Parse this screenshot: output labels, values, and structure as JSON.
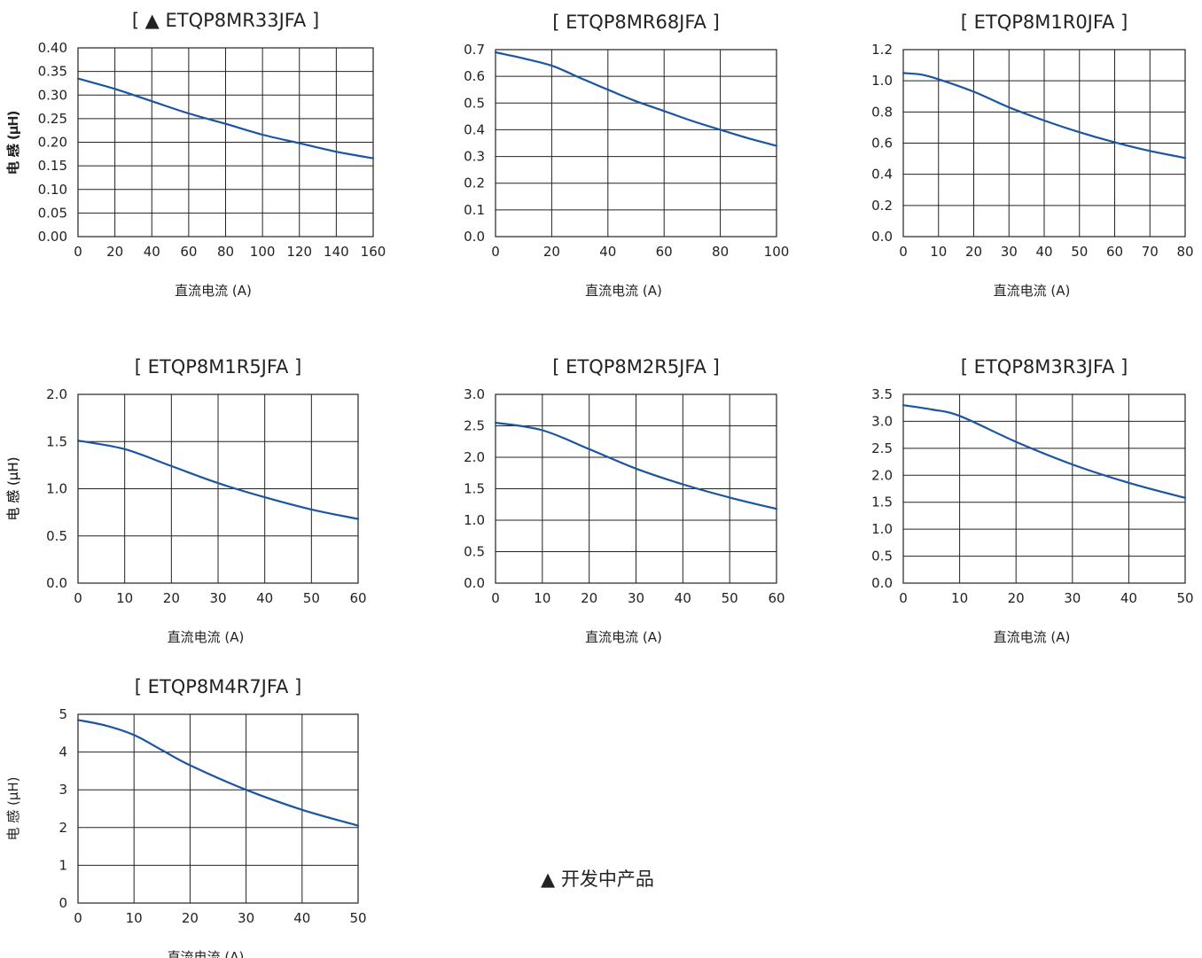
{
  "colors": {
    "line": "#1a56a0",
    "grid": "#222222",
    "text": "#222222"
  },
  "note": "▲ 开发中产品",
  "chart_data": [
    {
      "type": "line",
      "title": "[ ▲ ETQP8MR33JFA ]",
      "xlabel": "直流电流 (A)",
      "ylabel": "电 感 (μH)",
      "xlim": [
        0,
        160
      ],
      "ylim": [
        0,
        0.4
      ],
      "xticks": [
        0,
        20,
        40,
        60,
        80,
        100,
        120,
        140,
        160
      ],
      "xtick_labels": [
        "0",
        "20",
        "40",
        "60",
        "80",
        "100",
        "120",
        "140",
        "160"
      ],
      "yticks": [
        0,
        0.05,
        0.1,
        0.15,
        0.2,
        0.25,
        0.3,
        0.35,
        0.4
      ],
      "ytick_labels": [
        "0.00",
        "0.05",
        "0.10",
        "0.15",
        "0.20",
        "0.25",
        "0.30",
        "0.35",
        "0.40"
      ],
      "grid": true,
      "x": [
        0,
        20,
        40,
        60,
        80,
        100,
        120,
        140,
        160
      ],
      "y": [
        0.335,
        0.313,
        0.287,
        0.261,
        0.239,
        0.216,
        0.198,
        0.18,
        0.166
      ]
    },
    {
      "type": "line",
      "title": "[ ETQP8MR68JFA ]",
      "xlabel": "直流电流 (A)",
      "ylabel": "电 感 (μH)",
      "xlim": [
        0,
        100
      ],
      "ylim": [
        0,
        0.7
      ],
      "xticks": [
        0,
        20,
        40,
        60,
        80,
        100
      ],
      "xtick_labels": [
        "0",
        "20",
        "40",
        "60",
        "80",
        "100"
      ],
      "yticks": [
        0,
        0.1,
        0.2,
        0.3,
        0.4,
        0.5,
        0.6,
        0.7
      ],
      "ytick_labels": [
        "0.0",
        "0.1",
        "0.2",
        "0.3",
        "0.4",
        "0.5",
        "0.6",
        "0.7"
      ],
      "grid": true,
      "x": [
        0,
        10,
        20,
        30,
        40,
        50,
        60,
        70,
        80,
        90,
        100
      ],
      "y": [
        0.69,
        0.667,
        0.64,
        0.595,
        0.55,
        0.507,
        0.47,
        0.433,
        0.4,
        0.368,
        0.34
      ]
    },
    {
      "type": "line",
      "title": "[ ETQP8M1R0JFA ]",
      "xlabel": "直流电流 (A)",
      "ylabel": "电 感 (μH)",
      "xlim": [
        0,
        80
      ],
      "ylim": [
        0,
        1.2
      ],
      "xticks": [
        0,
        10,
        20,
        30,
        40,
        50,
        60,
        70,
        80
      ],
      "xtick_labels": [
        "0",
        "10",
        "20",
        "30",
        "40",
        "50",
        "60",
        "70",
        "80"
      ],
      "yticks": [
        0,
        0.2,
        0.4,
        0.6,
        0.8,
        1.0,
        1.2
      ],
      "ytick_labels": [
        "0.0",
        "0.2",
        "0.4",
        "0.6",
        "0.8",
        "1.0",
        "1.2"
      ],
      "grid": true,
      "x": [
        0,
        5,
        10,
        20,
        30,
        40,
        50,
        60,
        70,
        80
      ],
      "y": [
        1.05,
        1.04,
        1.01,
        0.93,
        0.83,
        0.745,
        0.67,
        0.605,
        0.55,
        0.505
      ]
    },
    {
      "type": "line",
      "title": "[ ETQP8M1R5JFA ]",
      "xlabel": "直流电流 (A)",
      "ylabel": "电 感 (μH)",
      "xlim": [
        0,
        60
      ],
      "ylim": [
        0,
        2.0
      ],
      "xticks": [
        0,
        10,
        20,
        30,
        40,
        50,
        60
      ],
      "xtick_labels": [
        "0",
        "10",
        "20",
        "30",
        "40",
        "50",
        "60"
      ],
      "yticks": [
        0,
        0.5,
        1.0,
        1.5,
        2.0
      ],
      "ytick_labels": [
        "0.0",
        "0.5",
        "1.0",
        "1.5",
        "2.0"
      ],
      "grid": true,
      "x": [
        0,
        10,
        20,
        30,
        40,
        50,
        60
      ],
      "y": [
        1.51,
        1.42,
        1.24,
        1.06,
        0.91,
        0.78,
        0.68
      ]
    },
    {
      "type": "line",
      "title": "[ ETQP8M2R5JFA ]",
      "xlabel": "直流电流 (A)",
      "ylabel": "电 感 (μH)",
      "xlim": [
        0,
        60
      ],
      "ylim": [
        0,
        3.0
      ],
      "xticks": [
        0,
        10,
        20,
        30,
        40,
        50,
        60
      ],
      "xtick_labels": [
        "0",
        "10",
        "20",
        "30",
        "40",
        "50",
        "60"
      ],
      "yticks": [
        0,
        0.5,
        1.0,
        1.5,
        2.0,
        2.5,
        3.0
      ],
      "ytick_labels": [
        "0.0",
        "0.5",
        "1.0",
        "1.5",
        "2.0",
        "2.5",
        "3.0"
      ],
      "grid": true,
      "x": [
        0,
        10,
        20,
        30,
        40,
        50,
        60
      ],
      "y": [
        2.55,
        2.43,
        2.13,
        1.82,
        1.57,
        1.36,
        1.18
      ]
    },
    {
      "type": "line",
      "title": "[ ETQP8M3R3JFA ]",
      "xlabel": "直流电流 (A)",
      "ylabel": "电 感 (μH)",
      "xlim": [
        0,
        50
      ],
      "ylim": [
        0,
        3.5
      ],
      "xticks": [
        0,
        10,
        20,
        30,
        40,
        50
      ],
      "xtick_labels": [
        "0",
        "10",
        "20",
        "30",
        "40",
        "50"
      ],
      "yticks": [
        0,
        0.5,
        1.0,
        1.5,
        2.0,
        2.5,
        3.0,
        3.5
      ],
      "ytick_labels": [
        "0.0",
        "0.5",
        "1.0",
        "1.5",
        "2.0",
        "2.5",
        "3.0",
        "3.5"
      ],
      "grid": true,
      "x": [
        0,
        5,
        10,
        20,
        30,
        40,
        50
      ],
      "y": [
        3.3,
        3.22,
        3.1,
        2.62,
        2.2,
        1.86,
        1.58
      ]
    },
    {
      "type": "line",
      "title": "[ ETQP8M4R7JFA ]",
      "xlabel": "直流电流 (A)",
      "ylabel": "电 感 (μH)",
      "xlim": [
        0,
        50
      ],
      "ylim": [
        0,
        5
      ],
      "xticks": [
        0,
        10,
        20,
        30,
        40,
        50
      ],
      "xtick_labels": [
        "0",
        "10",
        "20",
        "30",
        "40",
        "50"
      ],
      "yticks": [
        0,
        1,
        2,
        3,
        4,
        5
      ],
      "ytick_labels": [
        "0",
        "1",
        "2",
        "3",
        "4",
        "5"
      ],
      "grid": true,
      "x": [
        0,
        5,
        10,
        15,
        20,
        30,
        40,
        50
      ],
      "y": [
        4.85,
        4.7,
        4.45,
        4.05,
        3.65,
        3.0,
        2.47,
        2.05
      ]
    }
  ]
}
